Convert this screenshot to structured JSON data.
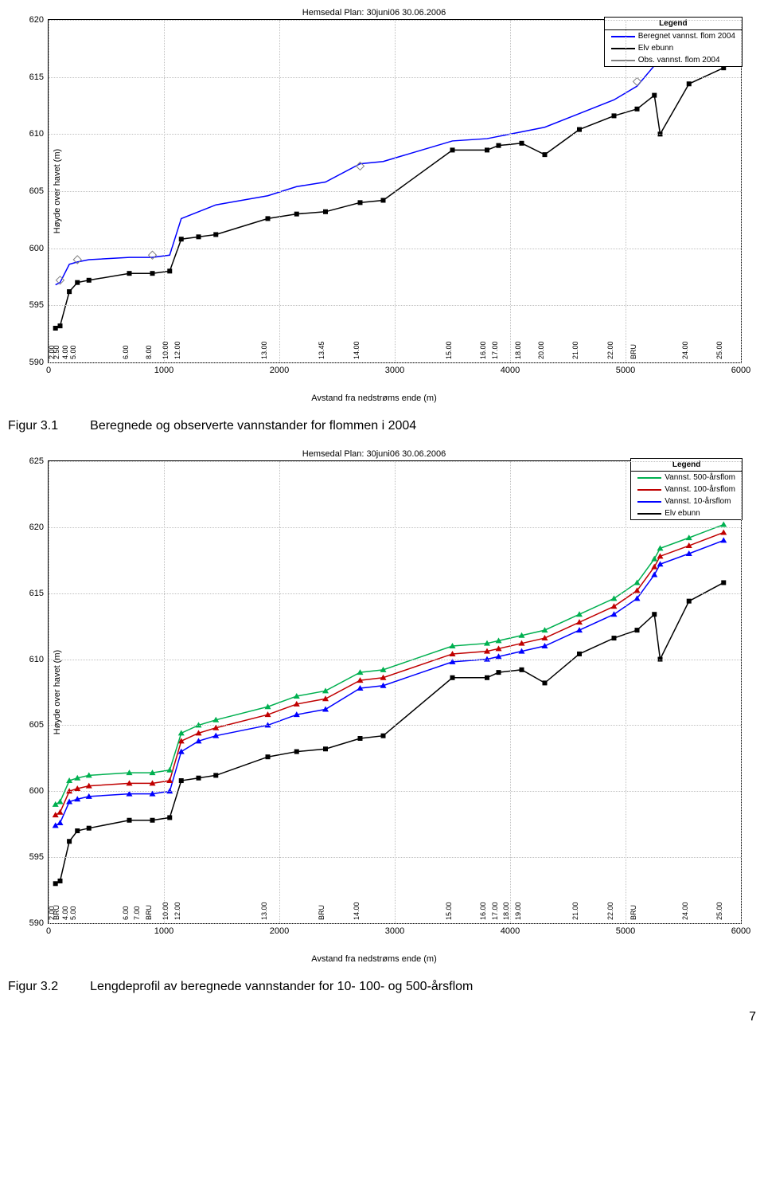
{
  "chart1": {
    "type": "line",
    "title": "Hemsedal    Plan: 30juni06   30.06.2006",
    "ylabel": "Høyde over havet (m)",
    "xlabel": "Avstand fra nedstrøms ende (m)",
    "xlim": [
      0,
      6000
    ],
    "ylim": [
      590,
      620
    ],
    "xticks": [
      0,
      1000,
      2000,
      3000,
      4000,
      5000,
      6000
    ],
    "yticks": [
      590,
      595,
      600,
      605,
      610,
      615,
      620
    ],
    "background": "#ffffff",
    "grid_color": "#c0c0c0",
    "legend_title": "Legend",
    "legend_items": [
      {
        "label": "Beregnet vannst. flom 2004",
        "color": "#0000ff",
        "marker": null
      },
      {
        "label": "Elv ebunn",
        "color": "#000000",
        "marker": "square"
      },
      {
        "label": "Obs. vannst. flom 2004",
        "color": "#808080",
        "marker": "diamond"
      }
    ],
    "series": {
      "elvebunn": {
        "color": "#000000",
        "stroke_width": 1.5,
        "points": [
          [
            60,
            593
          ],
          [
            100,
            593.2
          ],
          [
            180,
            596.2
          ],
          [
            250,
            597
          ],
          [
            350,
            597.2
          ],
          [
            700,
            597.8
          ],
          [
            900,
            597.8
          ],
          [
            1050,
            598
          ],
          [
            1150,
            600.8
          ],
          [
            1300,
            601
          ],
          [
            1450,
            601.2
          ],
          [
            1900,
            602.6
          ],
          [
            2150,
            603
          ],
          [
            2400,
            603.2
          ],
          [
            2700,
            604
          ],
          [
            2900,
            604.2
          ],
          [
            3500,
            608.6
          ],
          [
            3800,
            608.6
          ],
          [
            3900,
            609
          ],
          [
            4100,
            609.2
          ],
          [
            4300,
            608.2
          ],
          [
            4600,
            610.4
          ],
          [
            4900,
            611.6
          ],
          [
            5100,
            612.2
          ],
          [
            5250,
            613.4
          ],
          [
            5300,
            610
          ],
          [
            5550,
            614.4
          ],
          [
            5850,
            615.8
          ]
        ]
      },
      "beregnet": {
        "color": "#0000ff",
        "stroke_width": 1.5,
        "points": [
          [
            60,
            596.8
          ],
          [
            100,
            597
          ],
          [
            180,
            598.6
          ],
          [
            250,
            598.8
          ],
          [
            350,
            599
          ],
          [
            700,
            599.2
          ],
          [
            900,
            599.2
          ],
          [
            1050,
            599.4
          ],
          [
            1150,
            602.6
          ],
          [
            1300,
            603.2
          ],
          [
            1450,
            603.8
          ],
          [
            1900,
            604.6
          ],
          [
            2150,
            605.4
          ],
          [
            2400,
            605.8
          ],
          [
            2700,
            607.4
          ],
          [
            2900,
            607.6
          ],
          [
            3500,
            609.4
          ],
          [
            3800,
            609.6
          ],
          [
            3900,
            609.8
          ],
          [
            4100,
            610.2
          ],
          [
            4300,
            610.6
          ],
          [
            4600,
            611.8
          ],
          [
            4900,
            613
          ],
          [
            5100,
            614.2
          ],
          [
            5250,
            616
          ],
          [
            5300,
            617
          ],
          [
            5550,
            617.6
          ],
          [
            5850,
            618.6
          ]
        ]
      },
      "obs": {
        "color": "#808080",
        "points": [
          [
            100,
            597.2
          ],
          [
            250,
            599
          ],
          [
            900,
            599.4
          ],
          [
            2700,
            607.2
          ],
          [
            5100,
            614.6
          ],
          [
            5550,
            617.8
          ],
          [
            5850,
            618.8
          ]
        ]
      }
    },
    "station_labels": [
      {
        "x": 60,
        "text": "2.00"
      },
      {
        "x": 100,
        "text": "2.50"
      },
      {
        "x": 180,
        "text": "4.00"
      },
      {
        "x": 250,
        "text": "5.00"
      },
      {
        "x": 700,
        "text": "6.00"
      },
      {
        "x": 900,
        "text": "8.00"
      },
      {
        "x": 1050,
        "text": "10.00"
      },
      {
        "x": 1150,
        "text": "12.00"
      },
      {
        "x": 1900,
        "text": "13.00"
      },
      {
        "x": 2400,
        "text": "13.45"
      },
      {
        "x": 2700,
        "text": "14.00"
      },
      {
        "x": 3500,
        "text": "15.00"
      },
      {
        "x": 3800,
        "text": "16.00"
      },
      {
        "x": 3900,
        "text": "17.00"
      },
      {
        "x": 4100,
        "text": "18.00"
      },
      {
        "x": 4300,
        "text": "20.00"
      },
      {
        "x": 4600,
        "text": "21.00"
      },
      {
        "x": 4900,
        "text": "22.00"
      },
      {
        "x": 5100,
        "text": "BRU"
      },
      {
        "x": 5550,
        "text": "24.00"
      },
      {
        "x": 5850,
        "text": "25.00"
      }
    ]
  },
  "fig1": {
    "label": "Figur 3.1",
    "caption": "Beregnede og observerte vannstander for flommen i 2004"
  },
  "chart2": {
    "type": "line",
    "title": "Hemsedal    Plan: 30juni06   30.06.2006",
    "ylabel": "Høyde over havet (m)",
    "xlabel": "Avstand fra nedstrøms ende (m)",
    "xlim": [
      0,
      6000
    ],
    "ylim": [
      590,
      625
    ],
    "xticks": [
      0,
      1000,
      2000,
      3000,
      4000,
      5000,
      6000
    ],
    "yticks": [
      590,
      595,
      600,
      605,
      610,
      615,
      620,
      625
    ],
    "background": "#ffffff",
    "grid_color": "#c0c0c0",
    "legend_title": "Legend",
    "legend_items": [
      {
        "label": "Vannst. 500-årsflom",
        "color": "#00b050",
        "marker": "triangle"
      },
      {
        "label": "Vannst. 100-årsflom",
        "color": "#c00000",
        "marker": null
      },
      {
        "label": "Vannst. 10-årsflom",
        "color": "#0000ff",
        "marker": "triangle"
      },
      {
        "label": "Elv ebunn",
        "color": "#000000",
        "marker": "square"
      }
    ],
    "series": {
      "elvebunn": {
        "color": "#000000",
        "stroke_width": 1.5,
        "points": [
          [
            60,
            593
          ],
          [
            100,
            593.2
          ],
          [
            180,
            596.2
          ],
          [
            250,
            597
          ],
          [
            350,
            597.2
          ],
          [
            700,
            597.8
          ],
          [
            900,
            597.8
          ],
          [
            1050,
            598
          ],
          [
            1150,
            600.8
          ],
          [
            1300,
            601
          ],
          [
            1450,
            601.2
          ],
          [
            1900,
            602.6
          ],
          [
            2150,
            603
          ],
          [
            2400,
            603.2
          ],
          [
            2700,
            604
          ],
          [
            2900,
            604.2
          ],
          [
            3500,
            608.6
          ],
          [
            3800,
            608.6
          ],
          [
            3900,
            609
          ],
          [
            4100,
            609.2
          ],
          [
            4300,
            608.2
          ],
          [
            4600,
            610.4
          ],
          [
            4900,
            611.6
          ],
          [
            5100,
            612.2
          ],
          [
            5250,
            613.4
          ],
          [
            5300,
            610
          ],
          [
            5550,
            614.4
          ],
          [
            5850,
            615.8
          ]
        ]
      },
      "f10": {
        "color": "#0000ff",
        "stroke_width": 1.5,
        "points": [
          [
            60,
            597.4
          ],
          [
            100,
            597.6
          ],
          [
            180,
            599.2
          ],
          [
            250,
            599.4
          ],
          [
            350,
            599.6
          ],
          [
            700,
            599.8
          ],
          [
            900,
            599.8
          ],
          [
            1050,
            600
          ],
          [
            1150,
            603
          ],
          [
            1300,
            603.8
          ],
          [
            1450,
            604.2
          ],
          [
            1900,
            605
          ],
          [
            2150,
            605.8
          ],
          [
            2400,
            606.2
          ],
          [
            2700,
            607.8
          ],
          [
            2900,
            608
          ],
          [
            3500,
            609.8
          ],
          [
            3800,
            610
          ],
          [
            3900,
            610.2
          ],
          [
            4100,
            610.6
          ],
          [
            4300,
            611
          ],
          [
            4600,
            612.2
          ],
          [
            4900,
            613.4
          ],
          [
            5100,
            614.6
          ],
          [
            5250,
            616.4
          ],
          [
            5300,
            617.2
          ],
          [
            5550,
            618
          ],
          [
            5850,
            619
          ]
        ]
      },
      "f100": {
        "color": "#c00000",
        "stroke_width": 1.5,
        "points": [
          [
            60,
            598.2
          ],
          [
            100,
            598.4
          ],
          [
            180,
            600
          ],
          [
            250,
            600.2
          ],
          [
            350,
            600.4
          ],
          [
            700,
            600.6
          ],
          [
            900,
            600.6
          ],
          [
            1050,
            600.8
          ],
          [
            1150,
            603.8
          ],
          [
            1300,
            604.4
          ],
          [
            1450,
            604.8
          ],
          [
            1900,
            605.8
          ],
          [
            2150,
            606.6
          ],
          [
            2400,
            607
          ],
          [
            2700,
            608.4
          ],
          [
            2900,
            608.6
          ],
          [
            3500,
            610.4
          ],
          [
            3800,
            610.6
          ],
          [
            3900,
            610.8
          ],
          [
            4100,
            611.2
          ],
          [
            4300,
            611.6
          ],
          [
            4600,
            612.8
          ],
          [
            4900,
            614
          ],
          [
            5100,
            615.2
          ],
          [
            5250,
            617
          ],
          [
            5300,
            617.8
          ],
          [
            5550,
            618.6
          ],
          [
            5850,
            619.6
          ]
        ]
      },
      "f500": {
        "color": "#00b050",
        "stroke_width": 1.5,
        "points": [
          [
            60,
            599
          ],
          [
            100,
            599.2
          ],
          [
            180,
            600.8
          ],
          [
            250,
            601
          ],
          [
            350,
            601.2
          ],
          [
            700,
            601.4
          ],
          [
            900,
            601.4
          ],
          [
            1050,
            601.6
          ],
          [
            1150,
            604.4
          ],
          [
            1300,
            605
          ],
          [
            1450,
            605.4
          ],
          [
            1900,
            606.4
          ],
          [
            2150,
            607.2
          ],
          [
            2400,
            607.6
          ],
          [
            2700,
            609
          ],
          [
            2900,
            609.2
          ],
          [
            3500,
            611
          ],
          [
            3800,
            611.2
          ],
          [
            3900,
            611.4
          ],
          [
            4100,
            611.8
          ],
          [
            4300,
            612.2
          ],
          [
            4600,
            613.4
          ],
          [
            4900,
            614.6
          ],
          [
            5100,
            615.8
          ],
          [
            5250,
            617.6
          ],
          [
            5300,
            618.4
          ],
          [
            5550,
            619.2
          ],
          [
            5850,
            620.2
          ]
        ]
      }
    },
    "station_labels": [
      {
        "x": 60,
        "text": "2.00"
      },
      {
        "x": 100,
        "text": "BRU"
      },
      {
        "x": 180,
        "text": "4.00"
      },
      {
        "x": 250,
        "text": "5.00"
      },
      {
        "x": 700,
        "text": "6.00"
      },
      {
        "x": 800,
        "text": "7.00"
      },
      {
        "x": 900,
        "text": "BRU"
      },
      {
        "x": 1050,
        "text": "10.00"
      },
      {
        "x": 1150,
        "text": "12.00"
      },
      {
        "x": 1900,
        "text": "13.00"
      },
      {
        "x": 2400,
        "text": "BRU"
      },
      {
        "x": 2700,
        "text": "14.00"
      },
      {
        "x": 3500,
        "text": "15.00"
      },
      {
        "x": 3800,
        "text": "16.00"
      },
      {
        "x": 3900,
        "text": "17.00"
      },
      {
        "x": 4000,
        "text": "18.00"
      },
      {
        "x": 4100,
        "text": "19.00"
      },
      {
        "x": 4600,
        "text": "21.00"
      },
      {
        "x": 4900,
        "text": "22.00"
      },
      {
        "x": 5100,
        "text": "BRU"
      },
      {
        "x": 5550,
        "text": "24.00"
      },
      {
        "x": 5850,
        "text": "25.00"
      }
    ]
  },
  "fig2": {
    "label": "Figur 3.2",
    "caption": "Lengdeprofil av beregnede vannstander for 10- 100- og 500-årsflom"
  },
  "page_number": "7"
}
